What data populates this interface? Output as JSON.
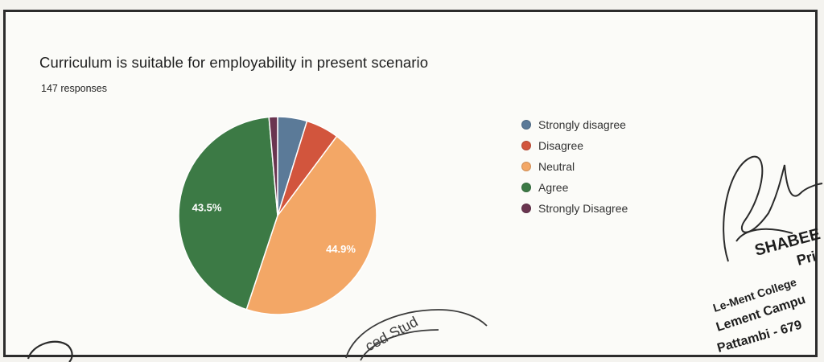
{
  "form": {
    "question": "Curriculum is suitable for employability in present scenario",
    "responses": "147 responses"
  },
  "chart_data": {
    "type": "pie",
    "title": "Curriculum is suitable for employability in present scenario",
    "slices": [
      {
        "label": "Strongly disagree",
        "value": 4.8,
        "color": "#5b7a98",
        "show_label": false
      },
      {
        "label": "Disagree",
        "value": 5.4,
        "color": "#d2553d",
        "show_label": false
      },
      {
        "label": "Neutral",
        "value": 44.9,
        "display": "44.9%",
        "color": "#f3a766",
        "show_label": true
      },
      {
        "label": "Agree",
        "value": 43.5,
        "display": "43.5%",
        "color": "#3c7a45",
        "show_label": true
      },
      {
        "label": "Strongly Disagree",
        "value": 1.4,
        "color": "#6a3550",
        "show_label": false
      }
    ],
    "legend_position": "right"
  },
  "overlay": {
    "seal_text": "SHABEE",
    "seal_line2": "Pri",
    "seal_line3": "Le-Ment College",
    "seal_line4": "Lement Campu",
    "seal_line5": "Pattambi - 679",
    "stamp_arc_text": "ced Stud"
  }
}
